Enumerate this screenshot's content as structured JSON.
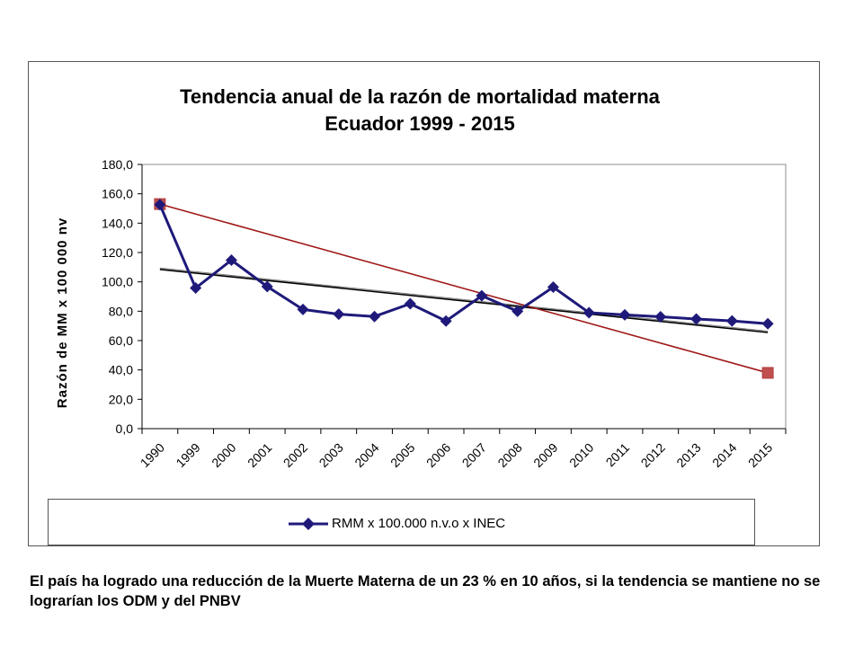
{
  "chart_data": {
    "type": "line",
    "title": "Tendencia anual de la razón de mortalidad materna",
    "subtitle": "Ecuador 1999 - 2015",
    "ylabel": "Razón de MM x 100 000 nv",
    "xlabel": "",
    "categories": [
      "1990",
      "1999",
      "2000",
      "2001",
      "2002",
      "2003",
      "2004",
      "2005",
      "2006",
      "2007",
      "2008",
      "2009",
      "2010",
      "2011",
      "2012",
      "2013",
      "2014",
      "2015"
    ],
    "ylim": [
      0,
      180
    ],
    "yticks": [
      "0,0",
      "20,0",
      "40,0",
      "60,0",
      "80,0",
      "100,0",
      "120,0",
      "140,0",
      "160,0",
      "180,0"
    ],
    "grid": false,
    "legend_position": "bottom",
    "series": [
      {
        "name": "RMM x 100.000 n.v.o x INEC",
        "color": "#1f1a7a",
        "marker": "diamond",
        "values": [
          152.6,
          95.8,
          114.8,
          96.8,
          81.2,
          78.0,
          76.4,
          85.1,
          73.3,
          90.5,
          80.0,
          96.4,
          79.0,
          77.5,
          76.2,
          74.7,
          73.4,
          71.5
        ]
      }
    ],
    "trendlines": [
      {
        "color": "#000000",
        "from": [
          0,
          108.5
        ],
        "to": [
          17,
          65.5
        ]
      },
      {
        "color": "#a01818",
        "from": [
          0,
          153
        ],
        "to": [
          17,
          38
        ],
        "end_markers": true
      }
    ]
  },
  "caption": "El país ha logrado una reducción de la Muerte Materna de un 23 % en 10 años, si la tendencia se mantiene no se lograrían los ODM  y del PNBV"
}
